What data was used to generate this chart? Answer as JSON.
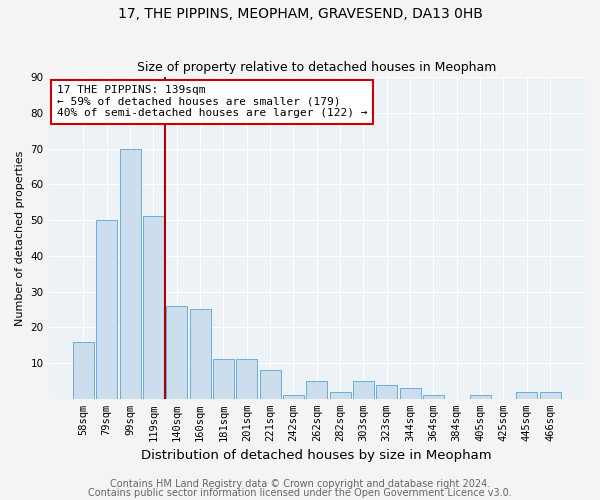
{
  "title": "17, THE PIPPINS, MEOPHAM, GRAVESEND, DA13 0HB",
  "subtitle": "Size of property relative to detached houses in Meopham",
  "xlabel": "Distribution of detached houses by size in Meopham",
  "ylabel": "Number of detached properties",
  "categories": [
    "58sqm",
    "79sqm",
    "99sqm",
    "119sqm",
    "140sqm",
    "160sqm",
    "181sqm",
    "201sqm",
    "221sqm",
    "242sqm",
    "262sqm",
    "282sqm",
    "303sqm",
    "323sqm",
    "344sqm",
    "364sqm",
    "384sqm",
    "405sqm",
    "425sqm",
    "445sqm",
    "466sqm"
  ],
  "values": [
    16,
    50,
    70,
    51,
    26,
    25,
    11,
    11,
    8,
    1,
    5,
    2,
    5,
    4,
    3,
    1,
    0,
    1,
    0,
    2,
    2
  ],
  "bar_color": "#ccdded",
  "bar_edge_color": "#6aaed6",
  "vline_x_index": 3.5,
  "annotation_text": "17 THE PIPPINS: 139sqm\n← 59% of detached houses are smaller (179)\n40% of semi-detached houses are larger (122) →",
  "annotation_box_color": "white",
  "annotation_box_edge": "#cc0000",
  "vline_color": "#aa0000",
  "footer1": "Contains HM Land Registry data © Crown copyright and database right 2024.",
  "footer2": "Contains public sector information licensed under the Open Government Licence v3.0.",
  "ylim": [
    0,
    90
  ],
  "yticks": [
    0,
    10,
    20,
    30,
    40,
    50,
    60,
    70,
    80,
    90
  ],
  "background_color": "#edf2f7",
  "grid_color": "#ffffff",
  "title_fontsize": 10,
  "subtitle_fontsize": 9,
  "xlabel_fontsize": 9.5,
  "ylabel_fontsize": 8,
  "tick_fontsize": 7.5,
  "annotation_fontsize": 8,
  "footer_fontsize": 7
}
